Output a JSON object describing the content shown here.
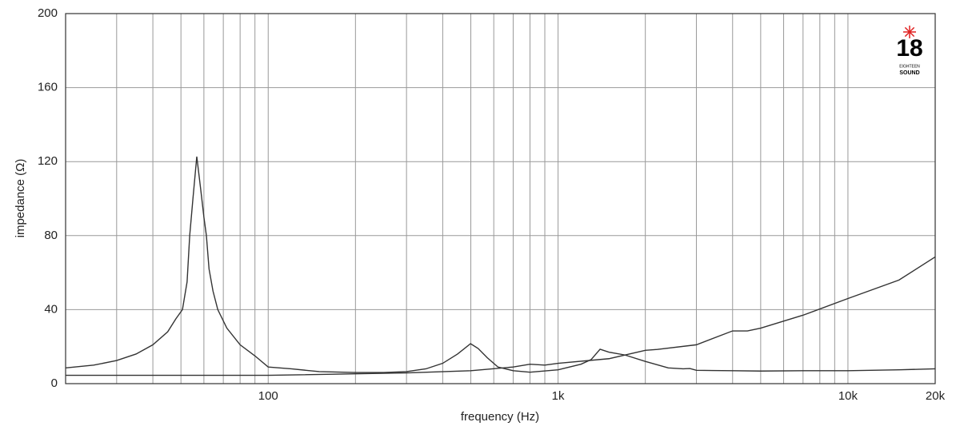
{
  "chart_data": {
    "type": "line",
    "xlabel": "frequency (Hz)",
    "ylabel": "impedance (Ω)",
    "log_x": true,
    "grid": true,
    "xlim": [
      20,
      20000
    ],
    "ylim": [
      0,
      200
    ],
    "xticks": [
      100,
      {
        "value": 1000,
        "label": "1k"
      },
      {
        "value": 10000,
        "label": "10k"
      },
      {
        "value": 20000,
        "label": "20k"
      }
    ],
    "xminor": [
      30,
      40,
      50,
      60,
      70,
      80,
      90,
      200,
      300,
      400,
      500,
      600,
      700,
      800,
      900,
      2000,
      3000,
      4000,
      5000,
      6000,
      7000,
      8000,
      9000
    ],
    "yticks": [
      0,
      40,
      80,
      120,
      160,
      200
    ],
    "logo": {
      "number": "18",
      "line1": "EIGHTEEN",
      "line2": "SOUND",
      "star_color": "#e02020"
    },
    "series": [
      {
        "color": "#333333",
        "x": [
          20,
          25,
          30,
          35,
          40,
          45,
          48,
          50.6,
          52.5,
          53.6,
          55,
          56.7,
          58.5,
          60,
          61.2,
          62.5,
          64.5,
          67,
          72,
          80,
          90,
          100,
          120,
          150,
          200,
          250,
          300,
          350,
          400,
          450,
          499,
          530,
          570,
          620,
          700,
          800,
          1000,
          1200,
          1300,
          1396,
          1500,
          1700,
          2000,
          2400,
          2700,
          2850,
          3000,
          4000,
          5000,
          7000,
          10000,
          15000,
          20000
        ],
        "values": [
          8.5,
          10,
          12.5,
          16,
          21,
          28,
          35,
          40,
          55,
          80,
          100,
          122.7,
          105,
          90,
          80,
          62,
          50,
          40,
          30,
          21,
          15,
          9,
          8,
          6.5,
          6,
          6,
          6.5,
          8,
          11,
          16,
          21.6,
          19,
          14,
          9,
          7,
          6.2,
          7.5,
          10.5,
          13,
          18.6,
          17,
          15.5,
          12,
          8.5,
          8,
          8.2,
          7.2,
          7,
          6.8,
          7,
          7,
          7.5,
          8
        ]
      },
      {
        "color": "#333333",
        "x": [
          20,
          100,
          300,
          500,
          700,
          800,
          900,
          1000,
          1500,
          2000,
          2200,
          3000,
          4000,
          4500,
          5000,
          7000,
          10000,
          15000,
          20000
        ],
        "values": [
          4.5,
          4.5,
          5.8,
          7,
          9,
          10.5,
          10,
          11,
          13.5,
          18,
          18.5,
          21,
          28.5,
          28.5,
          30,
          37,
          46,
          56,
          68.5
        ]
      }
    ]
  }
}
